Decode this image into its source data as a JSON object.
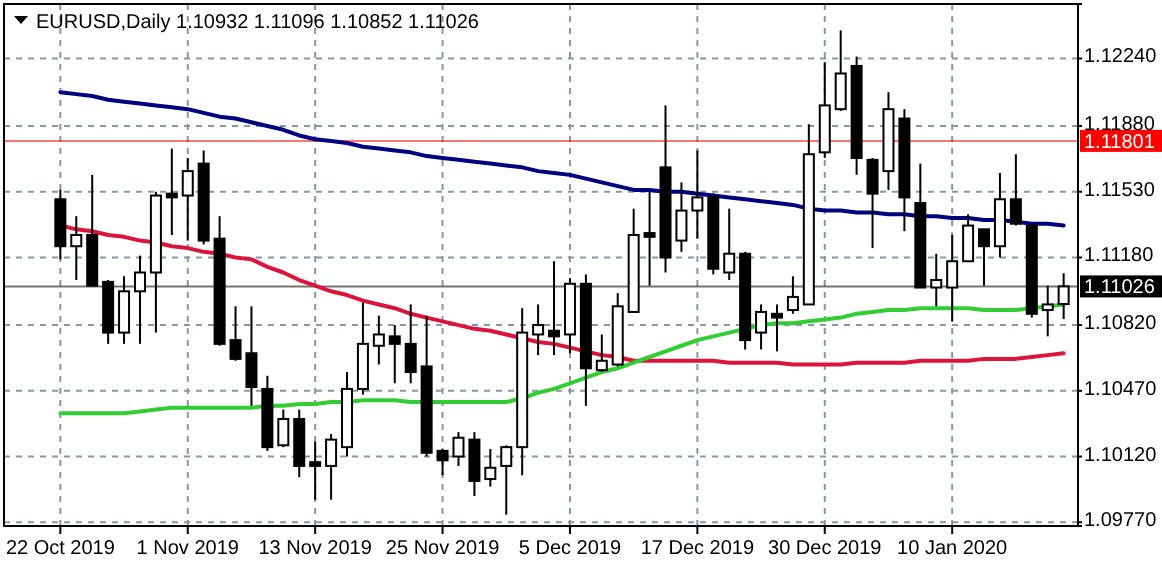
{
  "chart_data": {
    "type": "candlestick",
    "title": "EURUSD,Daily  1.10932 1.11096 1.10852 1.11026",
    "categories": [
      "22 Oct 2019",
      null,
      null,
      null,
      null,
      null,
      null,
      null,
      "1 Nov 2019",
      null,
      null,
      null,
      null,
      null,
      null,
      null,
      "13 Nov 2019",
      null,
      null,
      null,
      null,
      null,
      null,
      null,
      "25 Nov 2019",
      null,
      null,
      null,
      null,
      null,
      null,
      null,
      "5 Dec 2019",
      null,
      null,
      null,
      null,
      null,
      null,
      null,
      "17 Dec 2019",
      null,
      null,
      null,
      null,
      null,
      null,
      null,
      "30 Dec 2019",
      null,
      null,
      null,
      null,
      null,
      null,
      null,
      "10 Jan 2020",
      null,
      null,
      null,
      null,
      null,
      null,
      null
    ],
    "ohlc": [
      [
        1.1149,
        1.1154,
        1.1117,
        1.1124
      ],
      [
        1.1124,
        1.114,
        1.1106,
        1.113
      ],
      [
        1.113,
        1.1162,
        1.1103,
        1.1103
      ],
      [
        1.1105,
        1.1106,
        1.1072,
        1.1078
      ],
      [
        1.1078,
        1.1108,
        1.1072,
        1.11
      ],
      [
        1.11,
        1.1119,
        1.1072,
        1.111
      ],
      [
        1.111,
        1.1153,
        1.1078,
        1.1151
      ],
      [
        1.1152,
        1.1176,
        1.113,
        1.115
      ],
      [
        1.1151,
        1.1171,
        1.1127,
        1.1164
      ],
      [
        1.1168,
        1.1175,
        1.1125,
        1.1127
      ],
      [
        1.1128,
        1.114,
        1.1071,
        1.1072
      ],
      [
        1.1074,
        1.1092,
        1.1063,
        1.1064
      ],
      [
        1.1067,
        1.1092,
        1.1039,
        1.1049
      ],
      [
        1.1048,
        1.1055,
        1.1015,
        1.1017
      ],
      [
        1.1018,
        1.1037,
        1.1017,
        1.1032
      ],
      [
        1.1032,
        1.1037,
        1.1001,
        1.1007
      ],
      [
        1.1009,
        1.102,
        1.0989,
        1.1007
      ],
      [
        1.1007,
        1.1024,
        1.0989,
        1.1021
      ],
      [
        1.1017,
        1.1057,
        1.1012,
        1.1048
      ],
      [
        1.1048,
        1.1094,
        1.1045,
        1.1072
      ],
      [
        1.1071,
        1.1087,
        1.1061,
        1.1077
      ],
      [
        1.1076,
        1.1082,
        1.1051,
        1.1072
      ],
      [
        1.1072,
        1.1093,
        1.1051,
        1.1057
      ],
      [
        1.106,
        1.1087,
        1.1012,
        1.1014
      ],
      [
        1.1015,
        1.1016,
        1.1002,
        1.101
      ],
      [
        1.1012,
        1.1025,
        1.1007,
        1.1022
      ],
      [
        1.1021,
        1.1025,
        1.0991,
        1.0999
      ],
      [
        1.1,
        1.1016,
        1.0996,
        1.1006
      ],
      [
        1.1007,
        1.1018,
        1.0981,
        1.1017
      ],
      [
        1.1017,
        1.1091,
        1.1002,
        1.1078
      ],
      [
        1.1077,
        1.1093,
        1.1066,
        1.1082
      ],
      [
        1.1079,
        1.1116,
        1.1066,
        1.1076
      ],
      [
        1.1077,
        1.1107,
        1.1067,
        1.1104
      ],
      [
        1.1104,
        1.1109,
        1.1039,
        1.1059
      ],
      [
        1.1058,
        1.1077,
        1.1057,
        1.1063
      ],
      [
        1.1061,
        1.1099,
        1.106,
        1.1092
      ],
      [
        1.1089,
        1.1144,
        1.1089,
        1.113
      ],
      [
        1.1131,
        1.1153,
        1.1103,
        1.1129
      ],
      [
        1.1166,
        1.1199,
        1.111,
        1.1118
      ],
      [
        1.1127,
        1.1158,
        1.1121,
        1.1143
      ],
      [
        1.1143,
        1.1175,
        1.1128,
        1.115
      ],
      [
        1.115,
        1.1152,
        1.1109,
        1.1112
      ],
      [
        1.111,
        1.1144,
        1.1106,
        1.112
      ],
      [
        1.112,
        1.1121,
        1.1069,
        1.1074
      ],
      [
        1.1078,
        1.1093,
        1.1069,
        1.1089
      ],
      [
        1.1088,
        1.1093,
        1.1068,
        1.1086
      ],
      [
        1.109,
        1.1108,
        1.1088,
        1.1097
      ],
      [
        1.1093,
        1.1189,
        1.1093,
        1.1173
      ],
      [
        1.1174,
        1.1222,
        1.1171,
        1.1199
      ],
      [
        1.1197,
        1.1239,
        1.1196,
        1.1216
      ],
      [
        1.122,
        1.1225,
        1.1162,
        1.1171
      ],
      [
        1.117,
        1.1171,
        1.1123,
        1.1152
      ],
      [
        1.1164,
        1.1206,
        1.1154,
        1.1197
      ],
      [
        1.1192,
        1.1197,
        1.1132,
        1.115
      ],
      [
        1.1147,
        1.1168,
        1.1102,
        1.1102
      ],
      [
        1.1102,
        1.112,
        1.1092,
        1.1106
      ],
      [
        1.1102,
        1.113,
        1.1084,
        1.1116
      ],
      [
        1.1116,
        1.1141,
        1.1116,
        1.1135
      ],
      [
        1.1133,
        1.1133,
        1.1103,
        1.1124
      ],
      [
        1.1124,
        1.1163,
        1.1118,
        1.1149
      ],
      [
        1.1149,
        1.1173,
        1.1135,
        1.1136
      ],
      [
        1.1135,
        1.1136,
        1.1086,
        1.1088
      ],
      [
        1.109,
        1.1103,
        1.1076,
        1.1093
      ],
      [
        1.10932,
        1.11096,
        1.10852,
        1.11026
      ]
    ],
    "series": [
      {
        "type": "line",
        "color": "#000080",
        "values": [
          1.1206,
          1.1205,
          1.1204,
          1.1202,
          1.1201,
          1.12,
          1.1199,
          1.1198,
          1.1197,
          1.1195,
          1.1193,
          1.1192,
          1.119,
          1.1188,
          1.1186,
          1.1183,
          1.1181,
          1.118,
          1.1179,
          1.1177,
          1.1176,
          1.1175,
          1.1174,
          1.1172,
          1.1171,
          1.117,
          1.1169,
          1.1168,
          1.1167,
          1.1166,
          1.1164,
          1.1163,
          1.1162,
          1.116,
          1.1158,
          1.1156,
          1.1154,
          1.1154,
          1.1153,
          1.1153,
          1.1152,
          1.1151,
          1.115,
          1.1149,
          1.1148,
          1.1147,
          1.1146,
          1.1144,
          1.1143,
          1.1143,
          1.1142,
          1.1142,
          1.1141,
          1.1141,
          1.114,
          1.114,
          1.1139,
          1.1139,
          1.1138,
          1.1138,
          1.1137,
          1.1136,
          1.1136,
          1.1135
        ]
      },
      {
        "type": "line",
        "color": "#dc143c",
        "values": [
          1.1135,
          1.1133,
          1.1132,
          1.113,
          1.1129,
          1.1127,
          1.1126,
          1.1124,
          1.1123,
          1.1121,
          1.112,
          1.1118,
          1.1117,
          1.1113,
          1.111,
          1.1106,
          1.1103,
          1.11,
          1.1098,
          1.1095,
          1.1093,
          1.1091,
          1.1088,
          1.1086,
          1.1084,
          1.1082,
          1.108,
          1.1079,
          1.1077,
          1.1075,
          1.1073,
          1.1072,
          1.107,
          1.1068,
          1.1066,
          1.1065,
          1.1063,
          1.1063,
          1.1063,
          1.1063,
          1.1063,
          1.1063,
          1.1062,
          1.1062,
          1.1062,
          1.1062,
          1.1061,
          1.1061,
          1.1061,
          1.1061,
          1.1062,
          1.1062,
          1.1062,
          1.1062,
          1.1063,
          1.1063,
          1.1063,
          1.1063,
          1.1064,
          1.1064,
          1.1064,
          1.1065,
          1.1066,
          1.1067
        ]
      },
      {
        "type": "line",
        "color": "#32cd32",
        "values": [
          1.1035,
          1.1035,
          1.1035,
          1.1035,
          1.1035,
          1.1036,
          1.1037,
          1.1038,
          1.1038,
          1.1038,
          1.1038,
          1.1038,
          1.1038,
          1.1039,
          1.1039,
          1.104,
          1.104,
          1.1041,
          1.1041,
          1.1042,
          1.1042,
          1.1042,
          1.1041,
          1.1041,
          1.1041,
          1.1041,
          1.1041,
          1.1041,
          1.1041,
          1.1043,
          1.1046,
          1.1048,
          1.1051,
          1.1054,
          1.1057,
          1.1059,
          1.1062,
          1.1065,
          1.1068,
          1.1071,
          1.1074,
          1.1076,
          1.1078,
          1.108,
          1.1082,
          1.1083,
          1.1083,
          1.1084,
          1.1085,
          1.1086,
          1.1088,
          1.1089,
          1.109,
          1.109,
          1.1091,
          1.1091,
          1.1091,
          1.1091,
          1.109,
          1.109,
          1.109,
          1.1091,
          1.1092,
          1.1093
        ]
      }
    ],
    "ylim": [
      1.0975,
      1.1253
    ],
    "yticks": [
      {
        "value": 1.1224,
        "label": "1.12240"
      },
      {
        "value": 1.1188,
        "label": "1.11880"
      },
      {
        "value": 1.1153,
        "label": "1.11530"
      },
      {
        "value": 1.1118,
        "label": "1.11180"
      },
      {
        "value": 1.1082,
        "label": "1.10820"
      },
      {
        "value": 1.1047,
        "label": "1.10470"
      },
      {
        "value": 1.1012,
        "label": "1.10120"
      },
      {
        "value": 1.0977,
        "label": "1.09770"
      }
    ],
    "ref_lines": [
      {
        "axis": "y",
        "value": 1.11801,
        "label": "1.11801",
        "color": "#ff0000"
      },
      {
        "axis": "y",
        "value": 1.11026,
        "label": "1.11026",
        "color": "#000000"
      }
    ],
    "grid": true
  }
}
